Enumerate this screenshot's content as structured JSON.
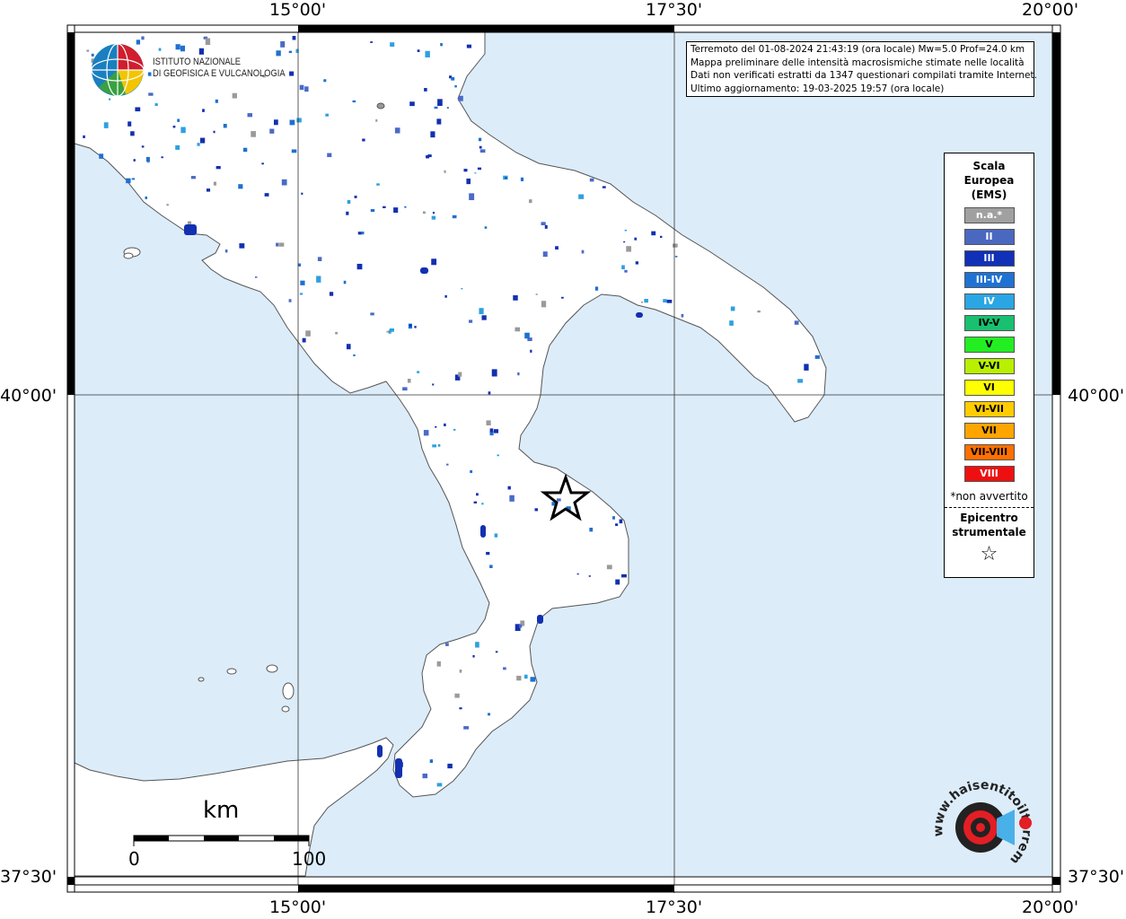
{
  "map": {
    "grid_labels": {
      "top": [
        "15°00'",
        "17°30'",
        "20°00'"
      ],
      "bottom": [
        "15°00'",
        "17°30'",
        "20°00'"
      ],
      "left": [
        "40°00'",
        "37°30'"
      ],
      "right": [
        "40°00'",
        "37°30'"
      ]
    },
    "colors": {
      "sea": "#dcecf9",
      "land": "#ffffff",
      "coast": "#555555",
      "intensity_II": "#4a6ac8",
      "intensity_III": "#1230b0",
      "intensity_III_IV": "#1f70d0",
      "intensity_IV": "#2ea0e0",
      "not_available": "#9a9a9a"
    }
  },
  "info_box": {
    "lines": [
      "Terremoto del 01-08-2024 21:43:19 (ora locale) Mw=5.0 Prof=24.0 km",
      "Mappa preliminare delle intensità macrosismiche stimate nelle località",
      "Dati non verificati estratti da 1347 questionari compilati tramite Internet.",
      "Ultimo aggiornamento: 19-03-2025 19:57 (ora locale)"
    ]
  },
  "logo": {
    "line1": "ISTITUTO NAZIONALE",
    "line2": "DI GEOFISICA E VULCANOLOGIA"
  },
  "legend": {
    "title": [
      "Scala",
      "Europea",
      "(EMS)"
    ],
    "items": [
      {
        "label": "n.a.*",
        "color": "#a0a0a0",
        "text_color": "#ffffff"
      },
      {
        "label": "II",
        "color": "#4a68c0",
        "text_color": "#ffffff"
      },
      {
        "label": "III",
        "color": "#1030b8",
        "text_color": "#ffffff"
      },
      {
        "label": "III-IV",
        "color": "#1f72d4",
        "text_color": "#ffffff"
      },
      {
        "label": "IV",
        "color": "#2aa6e4",
        "text_color": "#ffffff"
      },
      {
        "label": "IV-V",
        "color": "#18c070",
        "text_color": "#000000"
      },
      {
        "label": "V",
        "color": "#22ee22",
        "text_color": "#000000"
      },
      {
        "label": "V-VI",
        "color": "#b8f000",
        "text_color": "#000000"
      },
      {
        "label": "VI",
        "color": "#ffff00",
        "text_color": "#000000"
      },
      {
        "label": "VI-VII",
        "color": "#ffcc00",
        "text_color": "#000000"
      },
      {
        "label": "VII",
        "color": "#ffa500",
        "text_color": "#000000"
      },
      {
        "label": "VII-VIII",
        "color": "#ff7000",
        "text_color": "#000000"
      },
      {
        "label": "VIII",
        "color": "#ee1010",
        "text_color": "#ffffff"
      }
    ],
    "note": "*non avvertito",
    "epicenter": [
      "Epicentro",
      "strumentale"
    ],
    "star": "☆"
  },
  "scale_bar": {
    "unit": "km",
    "start": "0",
    "end": "100"
  },
  "hs_logo": {
    "text": "www.haisentitoilterremoto.it"
  }
}
